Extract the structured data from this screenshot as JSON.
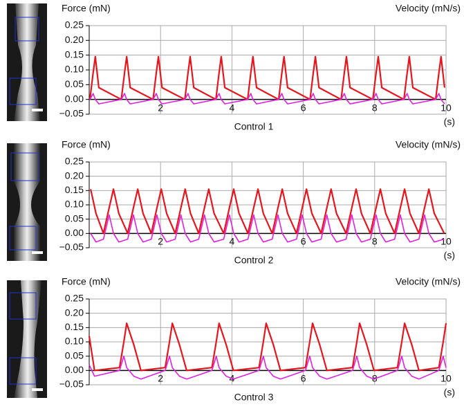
{
  "chart_data": [
    {
      "type": "line",
      "title": "Control 1",
      "ylabel": "Force (mN)",
      "y2label": "Velocity (mN/s)",
      "xlabel": "(s)",
      "xlim": [
        0,
        10
      ],
      "xticks": [
        2,
        4,
        6,
        8,
        10
      ],
      "ylim": [
        -0.05,
        0.25
      ],
      "yticks": [
        {
          "value": 0.25,
          "label": "0.25"
        },
        {
          "value": 0.2,
          "label": "0.20"
        },
        {
          "value": 0.15,
          "label": "0.15"
        },
        {
          "value": 0.1,
          "label": "0.10"
        },
        {
          "value": 0.05,
          "label": "0.05"
        },
        {
          "value": 0,
          "label": "0.00"
        },
        {
          "value": -0.05,
          "label": "−0.05"
        }
      ],
      "grid": true,
      "x": [
        0.02,
        0.11,
        0.17,
        0.27,
        0.9,
        0.99,
        1.05,
        1.15,
        1.79,
        1.88,
        1.94,
        2.04,
        2.68,
        2.77,
        2.83,
        2.93,
        3.55,
        3.64,
        3.7,
        3.8,
        4.44,
        4.53,
        4.59,
        4.69,
        5.31,
        5.4,
        5.46,
        5.56,
        6.19,
        6.28,
        6.34,
        6.44,
        7.06,
        7.15,
        7.21,
        7.31,
        7.95,
        8.04,
        8.1,
        8.2,
        8.82,
        8.91,
        8.97,
        9.07,
        9.71,
        9.8,
        9.86,
        9.96
      ],
      "series": [
        {
          "color": "#e8141c",
          "values": [
            0,
            0.09,
            0.145,
            0.04,
            0,
            0.09,
            0.145,
            0.04,
            0,
            0.09,
            0.145,
            0.04,
            0,
            0.09,
            0.145,
            0.04,
            0,
            0.09,
            0.145,
            0.04,
            0,
            0.09,
            0.145,
            0.04,
            0,
            0.09,
            0.145,
            0.04,
            0,
            0.09,
            0.145,
            0.04,
            0,
            0.09,
            0.145,
            0.04,
            0,
            0.09,
            0.145,
            0.04,
            0,
            0.09,
            0.145,
            0.04,
            0,
            0.09,
            0.145,
            0.04
          ]
        },
        {
          "color": "#e020e0",
          "axis": "y2",
          "values": [
            0,
            0.02,
            0,
            -0.015,
            0,
            0.02,
            0,
            -0.015,
            0,
            0.02,
            0,
            -0.015,
            0,
            0.02,
            0,
            -0.015,
            0,
            0.02,
            0,
            -0.015,
            0,
            0.02,
            0,
            -0.015,
            0,
            0.02,
            0,
            -0.015,
            0,
            0.02,
            0,
            -0.015,
            0,
            0.02,
            0,
            -0.015,
            0,
            0.02,
            0,
            -0.015,
            0,
            0.02,
            0,
            -0.015,
            0,
            0.02,
            0,
            -0.015
          ]
        }
      ]
    },
    {
      "type": "line",
      "title": "Control 2",
      "ylabel": "Force (mN)",
      "y2label": "Velocity (mN/s)",
      "xlabel": "(s)",
      "xlim": [
        0,
        10
      ],
      "xticks": [
        2,
        4,
        6,
        8,
        10
      ],
      "ylim": [
        -0.05,
        0.25
      ],
      "yticks": [
        {
          "value": 0.25,
          "label": "0.25"
        },
        {
          "value": 0.2,
          "label": "0.20"
        },
        {
          "value": 0.15,
          "label": "0.15"
        },
        {
          "value": 0.1,
          "label": "0.10"
        },
        {
          "value": 0.05,
          "label": "0.05"
        },
        {
          "value": 0,
          "label": "0.00"
        },
        {
          "value": -0.05,
          "label": "−0.05"
        }
      ],
      "grid": true,
      "x": [
        0.04,
        0.19,
        0.4,
        0.56,
        0.68,
        0.83,
        1.08,
        1.24,
        1.36,
        1.51,
        1.74,
        1.9,
        2.02,
        2.17,
        2.41,
        2.57,
        2.69,
        2.84,
        3.07,
        3.23,
        3.35,
        3.5,
        3.77,
        3.93,
        4.05,
        4.2,
        4.45,
        4.61,
        4.73,
        4.88,
        5.13,
        5.29,
        5.41,
        5.56,
        5.81,
        5.97,
        6.09,
        6.24,
        6.5,
        6.66,
        6.78,
        6.93,
        7.2,
        7.36,
        7.48,
        7.63,
        7.88,
        8.04,
        8.16,
        8.31,
        8.56,
        8.72,
        8.84,
        8.99,
        9.24,
        9.4,
        9.52,
        9.67,
        9.95
      ],
      "series": [
        {
          "color": "#e8141c",
          "values": [
            0.155,
            0.07,
            0,
            0.09,
            0.155,
            0.07,
            0,
            0.09,
            0.155,
            0.07,
            0,
            0.09,
            0.155,
            0.07,
            0,
            0.09,
            0.155,
            0.07,
            0,
            0.09,
            0.155,
            0.07,
            0,
            0.09,
            0.155,
            0.07,
            0,
            0.09,
            0.155,
            0.07,
            0,
            0.09,
            0.155,
            0.07,
            0,
            0.09,
            0.155,
            0.07,
            0,
            0.09,
            0.155,
            0.07,
            0,
            0.09,
            0.155,
            0.07,
            0,
            0.09,
            0.155,
            0.07,
            0,
            0.09,
            0.155,
            0.07,
            0,
            0.09,
            0.155,
            0.07,
            0
          ]
        },
        {
          "color": "#e020e0",
          "axis": "y2",
          "values": [
            0,
            -0.03,
            -0.02,
            0.065,
            0,
            -0.03,
            -0.02,
            0.065,
            0,
            -0.03,
            -0.02,
            0.065,
            0,
            -0.03,
            -0.02,
            0.065,
            0,
            -0.03,
            -0.02,
            0.065,
            0,
            -0.03,
            -0.02,
            0.065,
            0,
            -0.03,
            -0.02,
            0.065,
            0,
            -0.03,
            -0.02,
            0.065,
            0,
            -0.03,
            -0.02,
            0.065,
            0,
            -0.03,
            -0.02,
            0.065,
            0,
            -0.03,
            -0.02,
            0.065,
            0,
            -0.03,
            -0.02,
            0.065,
            0,
            -0.03,
            -0.02,
            0.065,
            0,
            -0.03,
            -0.02,
            0.065,
            0,
            -0.03,
            -0.02
          ]
        }
      ]
    },
    {
      "type": "line",
      "title": "Control 3",
      "ylabel": "Force (mN)",
      "y2label": "Velocity (mN/s)",
      "xlabel": "(s)",
      "xlim": [
        0,
        10
      ],
      "xticks": [
        2,
        4,
        6,
        8,
        10
      ],
      "ylim": [
        -0.05,
        0.25
      ],
      "yticks": [
        {
          "value": 0.25,
          "label": "0.25"
        },
        {
          "value": 0.2,
          "label": "0.20"
        },
        {
          "value": 0.15,
          "label": "0.15"
        },
        {
          "value": 0.1,
          "label": "0.10"
        },
        {
          "value": 0.05,
          "label": "0.05"
        },
        {
          "value": 0,
          "label": "0.00"
        },
        {
          "value": -0.05,
          "label": "−0.05"
        }
      ],
      "grid": true,
      "x": [
        0,
        0.15,
        0.85,
        0.97,
        1.05,
        1.25,
        1.45,
        2.13,
        2.25,
        2.33,
        2.53,
        2.73,
        3.44,
        3.56,
        3.64,
        3.84,
        4.04,
        4.76,
        4.88,
        4.96,
        5.16,
        5.36,
        6.06,
        6.18,
        6.26,
        6.46,
        6.66,
        7.38,
        7.5,
        7.58,
        7.78,
        7.98,
        8.64,
        8.76,
        8.84,
        9.04,
        9.24,
        9.8,
        9.92,
        10
      ],
      "series": [
        {
          "color": "#e8141c",
          "values": [
            0.12,
            0,
            0.01,
            0.1,
            0.165,
            0.09,
            0,
            0.01,
            0.1,
            0.165,
            0.09,
            0,
            0.01,
            0.1,
            0.165,
            0.09,
            0,
            0.01,
            0.1,
            0.165,
            0.09,
            0,
            0.01,
            0.1,
            0.165,
            0.09,
            0,
            0.01,
            0.1,
            0.165,
            0.09,
            0,
            0.01,
            0.1,
            0.165,
            0.09,
            0,
            0.01,
            0.1,
            0.165
          ]
        },
        {
          "color": "#e020e0",
          "axis": "y2",
          "values": [
            0.02,
            -0.02,
            0,
            0.05,
            0.01,
            -0.02,
            -0.03,
            0,
            0.05,
            0.01,
            -0.02,
            -0.03,
            0,
            0.05,
            0.01,
            -0.02,
            -0.03,
            0,
            0.05,
            0.01,
            -0.02,
            -0.03,
            0,
            0.05,
            0.01,
            -0.02,
            -0.03,
            0,
            0.05,
            0.01,
            -0.02,
            -0.03,
            0,
            0.05,
            0.01,
            -0.02,
            -0.03,
            0,
            0.05,
            0.01
          ]
        }
      ]
    }
  ]
}
